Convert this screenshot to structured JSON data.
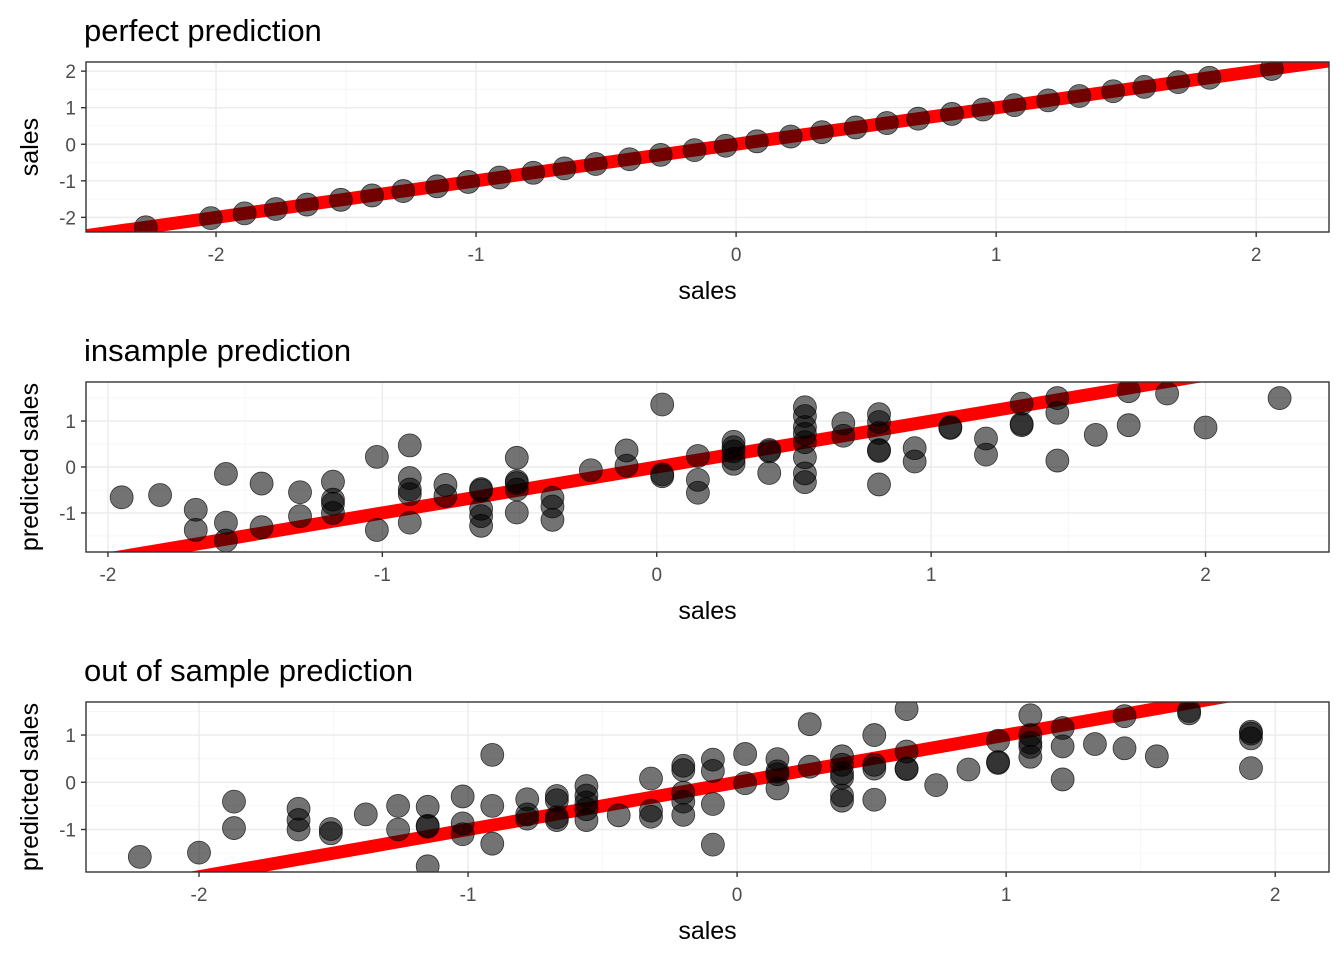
{
  "chart_data": [
    {
      "type": "scatter",
      "title": "perfect prediction",
      "xlabel": "sales",
      "ylabel": "sales",
      "xlim": [
        -2.5,
        2.28
      ],
      "ylim": [
        -2.4,
        2.25
      ],
      "xticks": [
        -2,
        -1,
        0,
        1,
        2
      ],
      "yticks": [
        -2,
        -1,
        0,
        1,
        2
      ],
      "grid": true,
      "reference_line": {
        "slope": 1,
        "intercept": 0,
        "color": "#ff0000"
      },
      "point_color": "#000000",
      "point_opacity": 0.55,
      "points": {
        "x": [
          -2.27,
          -2.02,
          -1.89,
          -1.77,
          -1.65,
          -1.52,
          -1.4,
          -1.28,
          -1.15,
          -1.03,
          -0.91,
          -0.78,
          -0.66,
          -0.54,
          -0.41,
          -0.29,
          -0.16,
          -0.04,
          0.08,
          0.21,
          0.33,
          0.46,
          0.58,
          0.7,
          0.83,
          0.95,
          1.07,
          1.2,
          1.32,
          1.45,
          1.57,
          1.7,
          1.82,
          2.06
        ],
        "y": [
          -2.27,
          -2.02,
          -1.89,
          -1.77,
          -1.65,
          -1.52,
          -1.4,
          -1.28,
          -1.15,
          -1.03,
          -0.91,
          -0.78,
          -0.66,
          -0.54,
          -0.41,
          -0.29,
          -0.16,
          -0.04,
          0.08,
          0.21,
          0.33,
          0.46,
          0.58,
          0.7,
          0.83,
          0.95,
          1.07,
          1.2,
          1.32,
          1.45,
          1.57,
          1.7,
          1.82,
          2.06
        ]
      }
    },
    {
      "type": "scatter",
      "title": "insample prediction",
      "xlabel": "sales",
      "ylabel": "predicted sales",
      "xlim": [
        -2.08,
        2.45
      ],
      "ylim": [
        -1.85,
        1.85
      ],
      "xticks": [
        -2,
        -1,
        0,
        1,
        2
      ],
      "yticks": [
        -1,
        0,
        1
      ],
      "grid": true,
      "reference_line": {
        "slope": 1,
        "intercept": 0,
        "color": "#ff0000"
      },
      "point_color": "#000000",
      "point_opacity": 0.55,
      "points": {
        "x": [
          -1.95,
          -1.81,
          -1.68,
          -1.68,
          -1.57,
          -1.57,
          -1.57,
          -1.44,
          -1.44,
          -1.3,
          -1.3,
          -1.18,
          -1.18,
          -1.18,
          -1.18,
          -1.02,
          -1.02,
          -0.9,
          -0.9,
          -0.9,
          -0.9,
          -0.9,
          -0.77,
          -0.77,
          -0.64,
          -0.64,
          -0.64,
          -0.64,
          -0.64,
          -0.51,
          -0.51,
          -0.51,
          -0.51,
          -0.51,
          -0.38,
          -0.38,
          -0.38,
          -0.24,
          -0.11,
          -0.11,
          0.02,
          0.02,
          0.02,
          0.15,
          0.15,
          0.15,
          0.28,
          0.28,
          0.28,
          0.28,
          0.28,
          0.41,
          0.41,
          0.41,
          0.54,
          0.54,
          0.54,
          0.54,
          0.54,
          0.54,
          0.54,
          0.54,
          0.68,
          0.68,
          0.81,
          0.81,
          0.81,
          0.81,
          0.81,
          0.81,
          0.94,
          0.94,
          1.07,
          1.07,
          1.2,
          1.2,
          1.33,
          1.33,
          1.33,
          1.46,
          1.46,
          1.46,
          1.6,
          1.72,
          1.72,
          1.86,
          2.0,
          2.27
        ],
        "y": [
          -0.66,
          -0.61,
          -0.93,
          -1.37,
          -0.15,
          -1.21,
          -1.6,
          -0.36,
          -1.31,
          -0.55,
          -1.07,
          -0.32,
          -0.71,
          -0.8,
          -1.0,
          0.22,
          -1.37,
          0.47,
          -0.24,
          -0.49,
          -0.59,
          -1.21,
          -0.39,
          -0.63,
          -0.48,
          -0.51,
          -0.91,
          -1.07,
          -1.28,
          0.2,
          -0.31,
          -0.35,
          -0.49,
          -0.99,
          -0.67,
          -0.86,
          -1.15,
          -0.07,
          0.36,
          0.03,
          1.36,
          -0.16,
          -0.2,
          0.24,
          -0.28,
          -0.56,
          0.55,
          0.43,
          0.34,
          0.18,
          0.07,
          0.37,
          0.34,
          -0.13,
          1.3,
          1.11,
          0.87,
          0.72,
          0.54,
          0.21,
          -0.14,
          -0.33,
          0.95,
          0.68,
          1.15,
          0.98,
          0.74,
          0.37,
          0.35,
          -0.38,
          0.41,
          0.12,
          0.87,
          0.85,
          0.62,
          0.27,
          1.38,
          0.94,
          0.91,
          1.5,
          1.18,
          0.14,
          0.7,
          1.65,
          0.91,
          1.6,
          0.86,
          1.5
        ]
      }
    },
    {
      "type": "scatter",
      "title": "out of sample prediction",
      "xlabel": "sales",
      "ylabel": "predicted sales",
      "xlim": [
        -2.42,
        2.2
      ],
      "ylim": [
        -1.9,
        1.7
      ],
      "xticks": [
        -2,
        -1,
        0,
        1,
        2
      ],
      "yticks": [
        -1,
        0,
        1
      ],
      "grid": true,
      "reference_line": {
        "slope": 1,
        "intercept": 0,
        "color": "#ff0000"
      },
      "point_color": "#000000",
      "point_opacity": 0.55,
      "points": {
        "x": [
          -2.22,
          -2.0,
          -1.87,
          -1.87,
          -1.63,
          -1.63,
          -1.63,
          -1.51,
          -1.51,
          -1.38,
          -1.26,
          -1.26,
          -1.15,
          -1.15,
          -1.15,
          -1.15,
          -1.02,
          -1.02,
          -1.02,
          -0.91,
          -0.91,
          -0.91,
          -0.78,
          -0.78,
          -0.78,
          -0.67,
          -0.67,
          -0.67,
          -0.67,
          -0.56,
          -0.56,
          -0.56,
          -0.56,
          -0.56,
          -0.44,
          -0.32,
          -0.32,
          -0.32,
          -0.2,
          -0.2,
          -0.2,
          -0.2,
          -0.2,
          -0.09,
          -0.09,
          -0.09,
          -0.09,
          0.03,
          0.03,
          0.15,
          0.15,
          0.15,
          0.15,
          0.27,
          0.27,
          0.39,
          0.39,
          0.39,
          0.39,
          0.39,
          0.39,
          0.51,
          0.51,
          0.51,
          0.51,
          0.63,
          0.63,
          0.63,
          0.63,
          0.74,
          0.86,
          0.97,
          0.97,
          0.97,
          1.09,
          1.09,
          1.09,
          1.09,
          1.09,
          1.21,
          1.21,
          1.21,
          1.33,
          1.44,
          1.44,
          1.56,
          1.68,
          1.68,
          1.91,
          1.91,
          1.91,
          1.91
        ],
        "y": [
          -1.58,
          -1.49,
          -0.41,
          -0.97,
          -0.56,
          -0.8,
          -1.0,
          -0.99,
          -1.08,
          -0.68,
          -0.5,
          -1.0,
          -0.52,
          -0.92,
          -0.94,
          -1.78,
          -0.3,
          -0.87,
          -1.1,
          0.58,
          -0.5,
          -1.3,
          -0.36,
          -0.68,
          -0.77,
          -0.29,
          -0.38,
          -0.74,
          -0.8,
          -0.08,
          -0.28,
          -0.43,
          -0.57,
          -0.8,
          -0.7,
          0.08,
          -0.6,
          -0.73,
          0.35,
          0.26,
          -0.22,
          -0.41,
          -0.69,
          0.48,
          0.24,
          -0.46,
          -1.32,
          0.6,
          -0.02,
          0.49,
          0.23,
          0.17,
          -0.13,
          1.23,
          0.33,
          0.55,
          0.37,
          0.19,
          0.1,
          -0.28,
          -0.39,
          1.0,
          0.37,
          0.29,
          -0.37,
          1.55,
          0.65,
          0.28,
          0.29,
          -0.06,
          0.27,
          0.88,
          0.43,
          0.41,
          1.42,
          1.0,
          0.84,
          0.75,
          0.54,
          1.15,
          0.76,
          0.06,
          0.81,
          1.4,
          0.72,
          0.55,
          1.46,
          1.51,
          1.07,
          1.03,
          0.93,
          0.3
        ]
      }
    }
  ]
}
